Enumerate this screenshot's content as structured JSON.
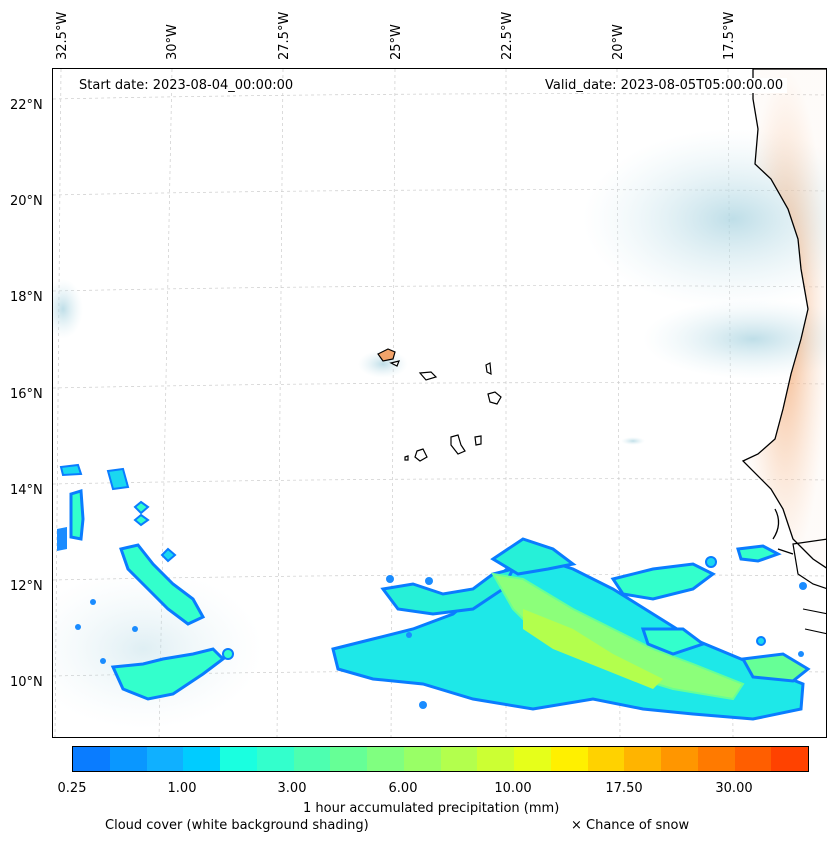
{
  "map": {
    "start_date": "Start date: 2023-08-04_00:00:00",
    "valid_date": "Valid_date: 2023-08-05T05:00:00.00",
    "lon_labels": [
      "32.5°W",
      "30°W",
      "27.5°W",
      "25°W",
      "22.5°W",
      "20°W",
      "17.5°W"
    ],
    "lat_labels": [
      "22°N",
      "20°N",
      "18°N",
      "16°N",
      "14°N",
      "12°N",
      "10°N"
    ]
  },
  "colorbar": {
    "label": "1 hour accumulated precipitation (mm)",
    "ticks": [
      "0.25",
      "1.00",
      "3.00",
      "6.00",
      "10.00",
      "17.50",
      "30.00"
    ],
    "colors": [
      "#0a7cff",
      "#0a97ff",
      "#10b0ff",
      "#00ccff",
      "#1affe0",
      "#33ffcc",
      "#4dffb0",
      "#66ff96",
      "#80ff80",
      "#99ff66",
      "#b3ff4d",
      "#ccff33",
      "#e6ff1a",
      "#fff000",
      "#ffd200",
      "#ffb400",
      "#ff9600",
      "#ff7a00",
      "#ff5e00",
      "#ff4200"
    ]
  },
  "legend": {
    "cloud_cover": "Cloud cover (white background shading)",
    "snow": "× Chance of snow"
  }
}
